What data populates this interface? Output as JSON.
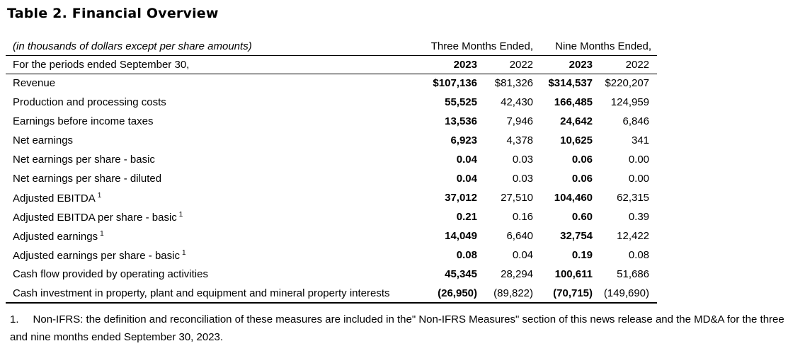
{
  "title": "Table 2. Financial Overview",
  "table": {
    "unit_note": "(in thousands of dollars except per share amounts)",
    "period_label": "For the periods ended September 30,",
    "col_groups": [
      "Three Months Ended,",
      "Nine Months Ended,"
    ],
    "years": [
      "2023",
      "2022",
      "2023",
      "2022"
    ],
    "rows": [
      {
        "label": "Revenue",
        "sup": "",
        "values": [
          "$107,136",
          "$81,326",
          "$314,537",
          "$220,207"
        ]
      },
      {
        "label": "Production and processing costs",
        "sup": "",
        "values": [
          "55,525",
          "42,430",
          "166,485",
          "124,959"
        ]
      },
      {
        "label": "Earnings before income taxes",
        "sup": "",
        "values": [
          "13,536",
          "7,946",
          "24,642",
          "6,846"
        ]
      },
      {
        "label": "Net earnings",
        "sup": "",
        "values": [
          "6,923",
          "4,378",
          "10,625",
          "341"
        ]
      },
      {
        "label": "Net earnings per share - basic",
        "sup": "",
        "values": [
          "0.04",
          "0.03",
          "0.06",
          "0.00"
        ]
      },
      {
        "label": "Net earnings per share - diluted",
        "sup": "",
        "values": [
          "0.04",
          "0.03",
          "0.06",
          "0.00"
        ]
      },
      {
        "label": "Adjusted EBITDA",
        "sup": "1",
        "values": [
          "37,012",
          "27,510",
          "104,460",
          "62,315"
        ]
      },
      {
        "label": "Adjusted EBITDA per share - basic",
        "sup": "1",
        "values": [
          "0.21",
          "0.16",
          "0.60",
          "0.39"
        ]
      },
      {
        "label": "Adjusted earnings",
        "sup": "1",
        "values": [
          "14,049",
          "6,640",
          "32,754",
          "12,422"
        ]
      },
      {
        "label": "Adjusted earnings per share - basic",
        "sup": "1",
        "values": [
          "0.08",
          "0.04",
          "0.19",
          "0.08"
        ]
      },
      {
        "label": "Cash flow provided by operating activities",
        "sup": "",
        "values": [
          "45,345",
          "28,294",
          "100,611",
          "51,686"
        ]
      },
      {
        "label": "Cash investment in property, plant and equipment and mineral property interests",
        "sup": "",
        "values": [
          "(26,950)",
          "(89,822)",
          "(70,715)",
          "(149,690)"
        ]
      }
    ]
  },
  "footnote": {
    "number": "1.",
    "text": "Non-IFRS: the definition and reconciliation of these measures are included in the\" Non-IFRS Measures\" section of this news release and the MD&A for the three and nine months ended September 30, 2023."
  }
}
